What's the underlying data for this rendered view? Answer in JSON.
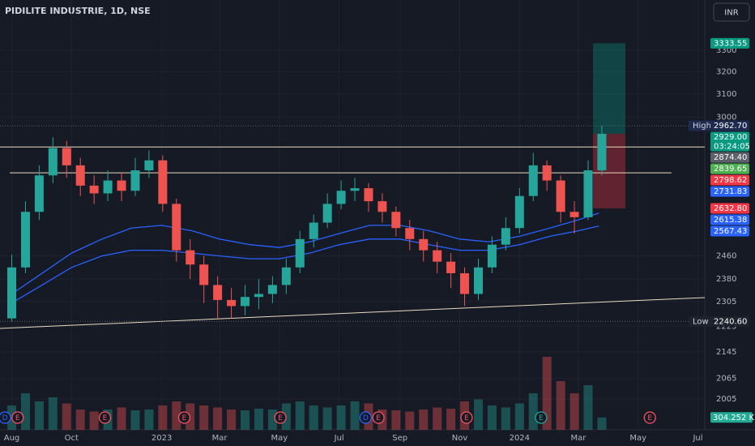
{
  "chart_data": {
    "type": "candlestick",
    "title": "PIDILITE INDUSTRIE, 1D, NSE",
    "currency": "INR",
    "log": true,
    "grid": true,
    "ylim": [
      1919,
      3546
    ],
    "yticks": [
      2005,
      2065,
      2145,
      2225,
      2305,
      2380,
      2460,
      3000,
      3100,
      3200,
      3300
    ],
    "xlim": [
      "2022-07-20",
      "2024-07-08"
    ],
    "xticks": [
      {
        "value": "2022-08-01",
        "label": "Aug"
      },
      {
        "value": "2022-10-01",
        "label": "Oct"
      },
      {
        "value": "2023-01-01",
        "label": "2023"
      },
      {
        "value": "2023-03-01",
        "label": "Mar"
      },
      {
        "value": "2023-05-01",
        "label": "May"
      },
      {
        "value": "2023-07-01",
        "label": "Jul"
      },
      {
        "value": "2023-09-01",
        "label": "Sep"
      },
      {
        "value": "2023-11-01",
        "label": "Nov"
      },
      {
        "value": "2024-01-01",
        "label": "2024"
      },
      {
        "value": "2024-03-01",
        "label": "Mar"
      },
      {
        "value": "2024-05-01",
        "label": "May"
      },
      {
        "value": "2024-07-01",
        "label": "Jul"
      }
    ],
    "up_color": "#26a69a",
    "down_color": "#ef5350",
    "dates": [
      "2022-07-25",
      "2022-08-08",
      "2022-08-22",
      "2022-09-05",
      "2022-09-19",
      "2022-10-03",
      "2022-10-17",
      "2022-10-31",
      "2022-11-14",
      "2022-11-28",
      "2022-12-12",
      "2022-12-26",
      "2023-01-09",
      "2023-01-23",
      "2023-02-06",
      "2023-02-20",
      "2023-03-06",
      "2023-03-20",
      "2023-04-03",
      "2023-04-17",
      "2023-05-01",
      "2023-05-15",
      "2023-05-29",
      "2023-06-12",
      "2023-06-26",
      "2023-07-10",
      "2023-07-24",
      "2023-08-07",
      "2023-08-21",
      "2023-09-04",
      "2023-09-18",
      "2023-10-02",
      "2023-10-16",
      "2023-10-30",
      "2023-11-13",
      "2023-11-27",
      "2023-12-11",
      "2023-12-25",
      "2024-01-08",
      "2024-01-22",
      "2024-02-05",
      "2024-02-19",
      "2024-03-04",
      "2024-03-18"
    ],
    "open": [
      2250,
      2420,
      2620,
      2760,
      2870,
      2800,
      2720,
      2690,
      2740,
      2700,
      2780,
      2820,
      2650,
      2480,
      2430,
      2360,
      2310,
      2290,
      2320,
      2330,
      2360,
      2420,
      2520,
      2580,
      2650,
      2700,
      2710,
      2660,
      2620,
      2560,
      2520,
      2480,
      2440,
      2400,
      2330,
      2420,
      2500,
      2560,
      2680,
      2800,
      2740,
      2620,
      2600,
      2780
    ],
    "high": [
      2465,
      2660,
      2800,
      2915,
      2900,
      2830,
      2760,
      2780,
      2770,
      2830,
      2860,
      2840,
      2670,
      2520,
      2460,
      2390,
      2350,
      2360,
      2380,
      2390,
      2450,
      2550,
      2610,
      2690,
      2740,
      2750,
      2730,
      2690,
      2640,
      2590,
      2550,
      2510,
      2470,
      2420,
      2450,
      2530,
      2600,
      2710,
      2850,
      2820,
      2760,
      2660,
      2820,
      2962.7
    ],
    "low": [
      2240.6,
      2400,
      2590,
      2730,
      2750,
      2680,
      2650,
      2660,
      2660,
      2680,
      2750,
      2620,
      2440,
      2380,
      2300,
      2250,
      2250,
      2260,
      2280,
      2300,
      2330,
      2400,
      2490,
      2560,
      2630,
      2660,
      2620,
      2580,
      2530,
      2480,
      2440,
      2400,
      2350,
      2290,
      2310,
      2400,
      2480,
      2540,
      2660,
      2700,
      2580,
      2540,
      2590,
      2760
    ],
    "close": [
      2420,
      2620,
      2760,
      2870,
      2800,
      2720,
      2690,
      2740,
      2700,
      2780,
      2820,
      2650,
      2480,
      2430,
      2360,
      2310,
      2290,
      2320,
      2330,
      2360,
      2420,
      2520,
      2580,
      2650,
      2700,
      2710,
      2660,
      2620,
      2560,
      2520,
      2480,
      2440,
      2400,
      2330,
      2420,
      2500,
      2560,
      2680,
      2800,
      2740,
      2620,
      2600,
      2780,
      2929
    ],
    "volume": [
      600000,
      900000,
      700000,
      800000,
      650000,
      500000,
      450000,
      500000,
      550000,
      480000,
      500000,
      600000,
      700000,
      650000,
      600000,
      550000,
      500000,
      480000,
      520000,
      500000,
      650000,
      700000,
      600000,
      550000,
      600000,
      700000,
      650000,
      500000,
      480000,
      450000,
      500000,
      550000,
      520000,
      700000,
      750000,
      600000,
      550000,
      650000,
      900000,
      1800000,
      1200000,
      900000,
      1100000,
      304252
    ],
    "vlim": [
      0,
      3000000
    ],
    "volume_label": {
      "value": 304252,
      "label": "304.252 K"
    },
    "lines": [
      {
        "color": "#2962ff",
        "x": [
          "2022-08-01",
          "2022-09-01",
          "2022-10-01",
          "2022-11-01",
          "2022-12-01",
          "2023-01-01",
          "2023-02-01",
          "2023-03-01",
          "2023-04-01",
          "2023-05-01",
          "2023-06-01",
          "2023-07-01",
          "2023-08-01",
          "2023-09-01",
          "2023-10-01",
          "2023-11-01",
          "2023-12-01",
          "2024-01-01",
          "2024-02-01",
          "2024-03-01",
          "2024-03-22"
        ],
        "values": [
          2330,
          2400,
          2470,
          2520,
          2560,
          2570,
          2550,
          2520,
          2500,
          2490,
          2510,
          2540,
          2570,
          2570,
          2550,
          2520,
          2510,
          2530,
          2560,
          2590,
          2615.38
        ]
      },
      {
        "color": "#2962ff",
        "x": [
          "2022-08-01",
          "2022-09-01",
          "2022-10-01",
          "2022-11-01",
          "2022-12-01",
          "2023-01-01",
          "2023-02-01",
          "2023-03-01",
          "2023-04-01",
          "2023-05-01",
          "2023-06-01",
          "2023-07-01",
          "2023-08-01",
          "2023-09-01",
          "2023-10-01",
          "2023-11-01",
          "2023-12-01",
          "2024-01-01",
          "2024-02-01",
          "2024-03-01",
          "2024-03-22"
        ],
        "values": [
          2300,
          2360,
          2420,
          2460,
          2480,
          2480,
          2470,
          2460,
          2450,
          2450,
          2470,
          2500,
          2520,
          2520,
          2500,
          2480,
          2480,
          2500,
          2530,
          2550,
          2567.43
        ]
      }
    ],
    "levels": [
      {
        "value": 2874.4,
        "color": "#e9dcc0",
        "start": "2022-07-20",
        "end": "2024-07-08"
      },
      {
        "value": 2770,
        "color": "#e9dcc0",
        "start": "2022-07-30",
        "end": "2024-06-04"
      }
    ],
    "trendline": {
      "x": [
        "2022-07-20",
        "2024-07-08"
      ],
      "values": [
        2218,
        2318
      ],
      "color": "#e9dcc0"
    },
    "position": {
      "target": 3333.55,
      "entry": 2929,
      "stop": 2632.8,
      "start": "2024-03-16",
      "end": "2024-04-18"
    },
    "price_labels": [
      {
        "value": 3333.55,
        "bg": "#089981"
      },
      {
        "value": 2962.7,
        "label": "2962.70",
        "tag": "High",
        "bg": "#1e2a4f"
      },
      {
        "value": 2929,
        "label": "2929.00",
        "countdown": "03:24:05",
        "bg": "#089981"
      },
      {
        "value": 2874.4,
        "label": "2874.40",
        "bg": "#5d606b"
      },
      {
        "value": 2839.65,
        "bg": "#4caf50"
      },
      {
        "value": 2798.62,
        "bg": "#f23645"
      },
      {
        "value": 2731.83,
        "bg": "#2962ff"
      },
      {
        "value": 2632.8,
        "label": "2632.80",
        "bg": "#f23645"
      },
      {
        "value": 2615.38,
        "bg": "#2962ff"
      },
      {
        "value": 2567.43,
        "bg": "#2962ff"
      },
      {
        "value": 2240.6,
        "label": "2240.60",
        "tag": "Low",
        "bg": "#1e222d"
      }
    ],
    "events": [
      {
        "date": "2022-07-25",
        "label": "D",
        "color": "#2962ff"
      },
      {
        "date": "2022-08-07",
        "label": "E",
        "color": "#f7525f"
      },
      {
        "date": "2022-11-04",
        "label": "E",
        "color": "#f7525f"
      },
      {
        "date": "2023-01-24",
        "label": "E",
        "color": "#f7525f"
      },
      {
        "date": "2023-05-02",
        "label": "E",
        "color": "#f7525f"
      },
      {
        "date": "2023-07-28",
        "label": "D",
        "color": "#2962ff"
      },
      {
        "date": "2023-08-10",
        "label": "E",
        "color": "#f7525f"
      },
      {
        "date": "2023-11-08",
        "label": "E",
        "color": "#f7525f"
      },
      {
        "date": "2024-01-23",
        "label": "E",
        "color": "#26a69a"
      },
      {
        "date": "2024-05-13",
        "label": "E",
        "color": "#f7525f"
      }
    ]
  }
}
